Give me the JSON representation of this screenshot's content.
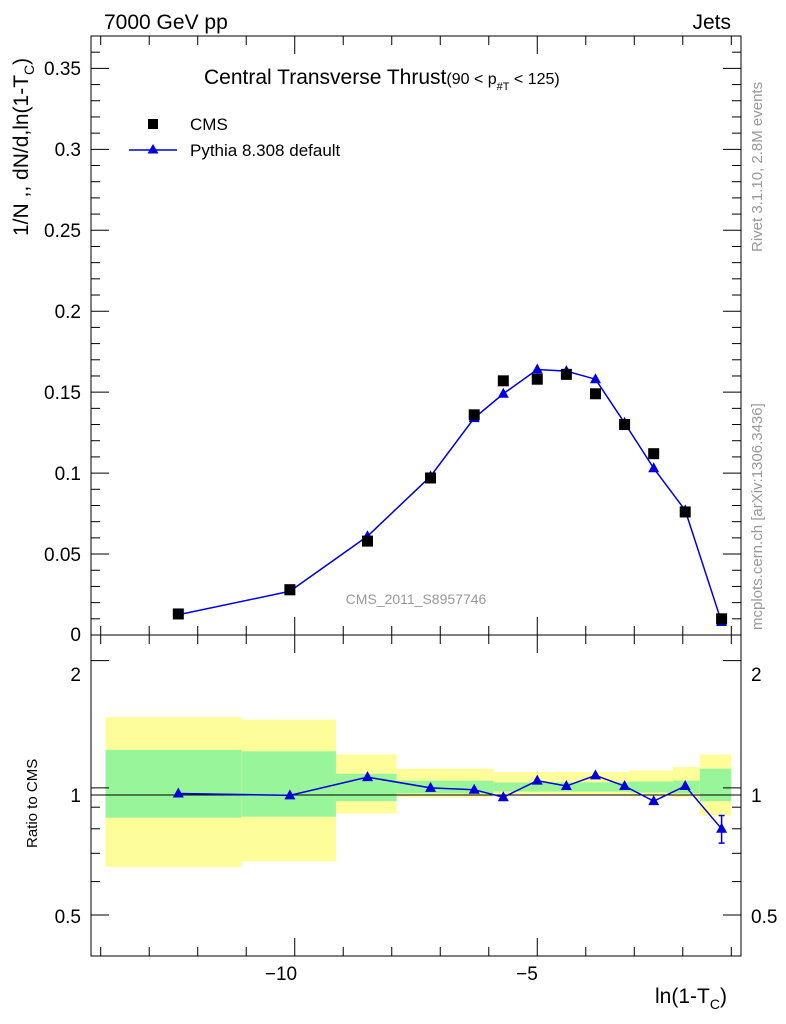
{
  "header": {
    "left_label": "7000 GeV pp",
    "right_label": "Jets"
  },
  "side_labels": {
    "rivet": "Rivet 3.1.10,  2.8M events",
    "source": "mcplots.cern.ch [arXiv:1306.3436]"
  },
  "colors": {
    "mc": "#0000dd",
    "data": "#000000",
    "band_inner": "#99f599",
    "band_outer": "#fdfd99"
  },
  "chart_data": {
    "type": "scatter",
    "title_main": "Central Transverse Thrust",
    "title_cut": "(90 < p",
    "title_cut_sub": "#T",
    "title_cut_end": " < 125)",
    "watermark": "CMS_2011_S8957746",
    "ylabel_top": "1/N ,, dN/d,ln(1-T",
    "ylabel_top_sub": "C",
    "ylabel_top_end": ")",
    "ylabel_bottom": "Ratio to CMS",
    "xlabel": "ln(1-T",
    "xlabel_sub": "C",
    "xlabel_end": ")",
    "xlim": [
      -14.2,
      -0.8
    ],
    "ylim_top": [
      0,
      0.37
    ],
    "ylim_ratio": [
      0.4,
      2.3
    ],
    "ratio_scale": "log",
    "x_ticks": [
      "−10",
      "−5"
    ],
    "y_ticks_top": [
      "0",
      "0.05",
      "0.1",
      "0.15",
      "0.2",
      "0.25",
      "0.3",
      "0.35"
    ],
    "y_ticks_ratio": [
      "0.5",
      "1",
      "2"
    ],
    "legend": [
      {
        "name": "CMS",
        "marker": "square"
      },
      {
        "name": "Pythia 8.308 default",
        "marker": "triangle-line"
      }
    ],
    "series": [
      {
        "name": "CMS",
        "x": [
          -12.4,
          -10.1,
          -8.5,
          -7.2,
          -6.3,
          -5.7,
          -5.0,
          -4.4,
          -3.8,
          -3.2,
          -2.6,
          -1.95,
          -1.2
        ],
        "y": [
          0.013,
          0.028,
          0.058,
          0.097,
          0.136,
          0.157,
          0.158,
          0.161,
          0.149,
          0.13,
          0.112,
          0.076,
          0.01
        ]
      },
      {
        "name": "Pythia 8.308 default",
        "x": [
          -12.4,
          -10.1,
          -8.5,
          -7.2,
          -6.3,
          -5.7,
          -5.0,
          -4.4,
          -3.8,
          -3.2,
          -2.6,
          -1.95,
          -1.2
        ],
        "y": [
          0.0125,
          0.027,
          0.061,
          0.098,
          0.134,
          0.149,
          0.164,
          0.163,
          0.158,
          0.131,
          0.103,
          0.077,
          0.008
        ],
        "yerr": [
          0.0003,
          0.0005,
          0.001,
          0.001,
          0.002,
          0.002,
          0.0025,
          0.0025,
          0.002,
          0.002,
          0.0015,
          0.0015,
          0.0008
        ],
        "ratio": [
          0.97,
          0.96,
          1.06,
          1.0,
          0.99,
          0.95,
          1.04,
          1.01,
          1.07,
          1.01,
          0.93,
          1.01,
          0.8
        ],
        "ratio_err": [
          0.005,
          0.005,
          0.01,
          0.01,
          0.01,
          0.01,
          0.015,
          0.015,
          0.015,
          0.015,
          0.015,
          0.02,
          0.06
        ]
      }
    ],
    "uncertainty_bands": [
      {
        "x0": -13.9,
        "x1": -11.1,
        "inner": [
          0.85,
          1.23
        ],
        "outer": [
          0.65,
          1.47
        ]
      },
      {
        "x0": -11.1,
        "x1": -9.15,
        "inner": [
          0.855,
          1.22
        ],
        "outer": [
          0.67,
          1.45
        ]
      },
      {
        "x0": -9.15,
        "x1": -7.9,
        "inner": [
          0.93,
          1.08
        ],
        "outer": [
          0.87,
          1.2
        ]
      },
      {
        "x0": -7.9,
        "x1": -5.9,
        "inner": [
          0.97,
          1.04
        ],
        "outer": [
          0.95,
          1.11
        ]
      },
      {
        "x0": -5.9,
        "x1": -3.1,
        "inner": [
          0.98,
          1.03
        ],
        "outer": [
          0.96,
          1.09
        ]
      },
      {
        "x0": -3.1,
        "x1": -2.2,
        "inner": [
          0.975,
          1.035
        ],
        "outer": [
          0.955,
          1.1
        ]
      },
      {
        "x0": -2.2,
        "x1": -1.65,
        "inner": [
          0.97,
          1.04
        ],
        "outer": [
          0.95,
          1.12
        ]
      },
      {
        "x0": -1.65,
        "x1": -1.0,
        "inner": [
          0.93,
          1.11
        ],
        "outer": [
          0.86,
          1.2
        ]
      }
    ]
  }
}
